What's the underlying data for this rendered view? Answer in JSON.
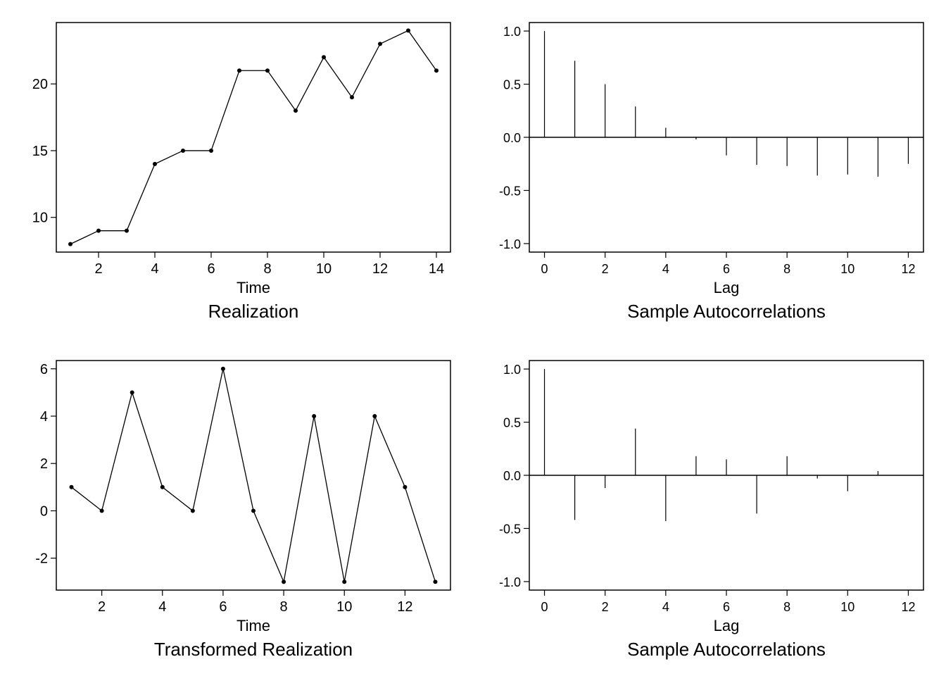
{
  "chart_data": [
    {
      "id": "realization",
      "type": "line",
      "title": "Realization",
      "xlabel": "Time",
      "ylabel": "",
      "x": [
        1,
        2,
        3,
        4,
        5,
        6,
        7,
        8,
        9,
        10,
        11,
        12,
        13,
        14
      ],
      "y": [
        8,
        9,
        9,
        14,
        15,
        15,
        21,
        21,
        18,
        22,
        19,
        23,
        24,
        21
      ],
      "xlim": [
        0.5,
        14.5
      ],
      "ylim": [
        7.4,
        24.6
      ],
      "xticks": [
        2,
        4,
        6,
        8,
        10,
        12,
        14
      ],
      "yticks": [
        10,
        15,
        20
      ],
      "xtick_labels": [
        "2",
        "4",
        "6",
        "8",
        "10",
        "12",
        "14"
      ],
      "ytick_labels": [
        "10",
        "15",
        "20"
      ],
      "markers": true,
      "grid": false
    },
    {
      "id": "acf-realization",
      "type": "bar",
      "title": "Sample Autocorrelations",
      "xlabel": "Lag",
      "ylabel": "",
      "x": [
        0,
        1,
        2,
        3,
        4,
        5,
        6,
        7,
        8,
        9,
        10,
        11,
        12
      ],
      "y": [
        1.0,
        0.72,
        0.5,
        0.29,
        0.09,
        -0.02,
        -0.17,
        -0.26,
        -0.27,
        -0.36,
        -0.35,
        -0.37,
        -0.25
      ],
      "xlim": [
        -0.5,
        12.5
      ],
      "ylim": [
        -1.08,
        1.08
      ],
      "xticks": [
        0,
        2,
        4,
        6,
        8,
        10,
        12
      ],
      "yticks": [
        -1.0,
        -0.5,
        0.0,
        0.5,
        1.0
      ],
      "xtick_labels": [
        "0",
        "2",
        "4",
        "6",
        "8",
        "10",
        "12"
      ],
      "ytick_labels": [
        "-1.0",
        "-0.5",
        "0.0",
        "0.5",
        "1.0"
      ],
      "grid": false
    },
    {
      "id": "transformed",
      "type": "line",
      "title": "Transformed Realization",
      "xlabel": "Time",
      "ylabel": "",
      "x": [
        1,
        2,
        3,
        4,
        5,
        6,
        7,
        8,
        9,
        10,
        11,
        12,
        13
      ],
      "y": [
        1,
        0,
        5,
        1,
        0,
        6,
        0,
        -3,
        4,
        -3,
        4,
        1,
        -3
      ],
      "xlim": [
        0.5,
        13.5
      ],
      "ylim": [
        -3.35,
        6.35
      ],
      "xticks": [
        2,
        4,
        6,
        8,
        10,
        12
      ],
      "yticks": [
        -2,
        0,
        2,
        4,
        6
      ],
      "xtick_labels": [
        "2",
        "4",
        "6",
        "8",
        "10",
        "12"
      ],
      "ytick_labels": [
        "-2",
        "0",
        "2",
        "4",
        "6"
      ],
      "markers": true,
      "grid": false
    },
    {
      "id": "acf-transformed",
      "type": "bar",
      "title": "Sample Autocorrelations",
      "xlabel": "Lag",
      "ylabel": "",
      "x": [
        0,
        1,
        2,
        3,
        4,
        5,
        6,
        7,
        8,
        9,
        10,
        11,
        12
      ],
      "y": [
        1.0,
        -0.42,
        -0.12,
        0.44,
        -0.43,
        0.18,
        0.15,
        -0.36,
        0.18,
        -0.03,
        -0.15,
        0.04,
        0.0
      ],
      "xlim": [
        -0.5,
        12.5
      ],
      "ylim": [
        -1.08,
        1.08
      ],
      "xticks": [
        0,
        2,
        4,
        6,
        8,
        10,
        12
      ],
      "yticks": [
        -1.0,
        -0.5,
        0.0,
        0.5,
        1.0
      ],
      "xtick_labels": [
        "0",
        "2",
        "4",
        "6",
        "8",
        "10",
        "12"
      ],
      "ytick_labels": [
        "-1.0",
        "-0.5",
        "0.0",
        "0.5",
        "1.0"
      ],
      "grid": false
    }
  ]
}
